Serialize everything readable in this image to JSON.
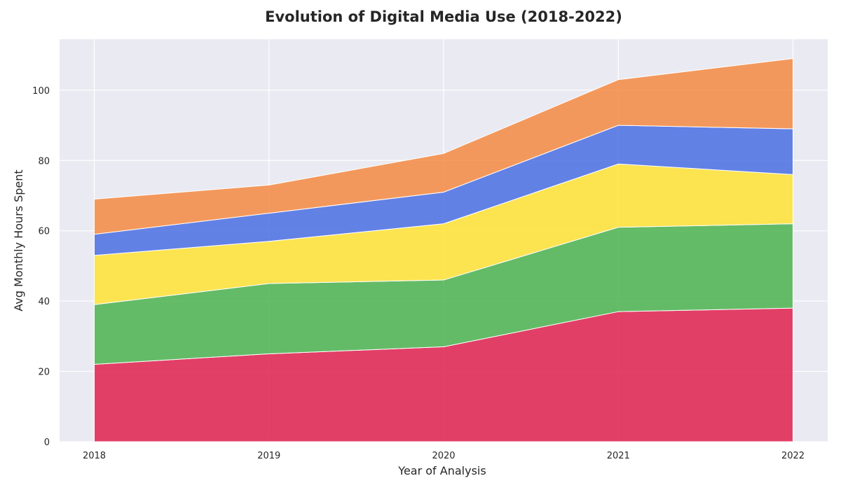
{
  "chart_data": {
    "type": "area",
    "stacked": true,
    "title": "Evolution of Digital Media Use (2018-2022)",
    "xlabel": "Year of Analysis",
    "ylabel": "Avg Monthly Hours Spent",
    "x": [
      "2018",
      "2019",
      "2020",
      "2021",
      "2022"
    ],
    "ylim": [
      0,
      114.5
    ],
    "yticks": [
      0,
      20,
      40,
      60,
      80,
      100
    ],
    "grid": true,
    "legend": "none",
    "series": [
      {
        "color": "#e0214f",
        "values": [
          22,
          25,
          27,
          37,
          38
        ]
      },
      {
        "color": "#4cb34f",
        "values": [
          17,
          20,
          19,
          24,
          24
        ]
      },
      {
        "color": "#ffe234",
        "values": [
          14,
          12,
          16,
          18,
          14
        ]
      },
      {
        "color": "#4a6fe3",
        "values": [
          6,
          8,
          9,
          11,
          13
        ]
      },
      {
        "color": "#f58a42",
        "values": [
          10,
          8,
          11,
          13,
          20
        ]
      }
    ],
    "colors": {
      "plot_background": "#eaeaf2",
      "grid": "#ffffff",
      "edge": "#ffffff"
    }
  }
}
